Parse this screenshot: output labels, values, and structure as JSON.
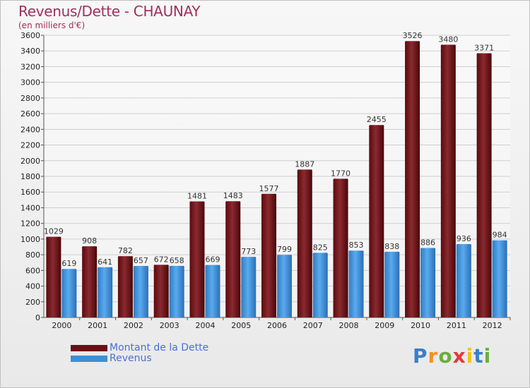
{
  "title": "Revenus/Dette - CHAUNAY",
  "subtitle": "(en milliers d'€)",
  "logo": {
    "letters": [
      "P",
      "r",
      "o",
      "x",
      "i",
      "t",
      "i"
    ],
    "colors": [
      "#3b7fc4",
      "#f29120",
      "#6aae3c",
      "#e23a3a",
      "#f0c419",
      "#3b7fc4",
      "#6aae3c"
    ]
  },
  "legend": [
    {
      "label": "Montant de la Dette",
      "color": "#6b0f14"
    },
    {
      "label": "Revenus",
      "color": "#3d8fd6"
    }
  ],
  "chart_data": {
    "type": "bar",
    "title": "Revenus/Dette - CHAUNAY",
    "ylabel": "(en milliers d'€)",
    "categories": [
      "2000",
      "2001",
      "2002",
      "2003",
      "2004",
      "2005",
      "2006",
      "2007",
      "2008",
      "2009",
      "2010",
      "2011",
      "2012"
    ],
    "series": [
      {
        "name": "Montant de la Dette",
        "color": "#6b0f14",
        "values": [
          1029,
          908,
          782,
          672,
          1481,
          1483,
          1577,
          1887,
          1770,
          2455,
          3526,
          3480,
          3371
        ]
      },
      {
        "name": "Revenus",
        "color": "#3d8fd6",
        "values": [
          619,
          641,
          657,
          658,
          669,
          773,
          799,
          825,
          853,
          838,
          886,
          936,
          984
        ]
      }
    ],
    "ylim": [
      0,
      3600
    ],
    "yticks": [
      "0",
      "200",
      "400",
      "600",
      "800",
      "1000",
      "1200",
      "1400",
      "1600",
      "1800",
      "2000",
      "2200",
      "2400",
      "2600",
      "2800",
      "3000",
      "3200",
      "3400",
      "3600"
    ],
    "grid": true
  }
}
